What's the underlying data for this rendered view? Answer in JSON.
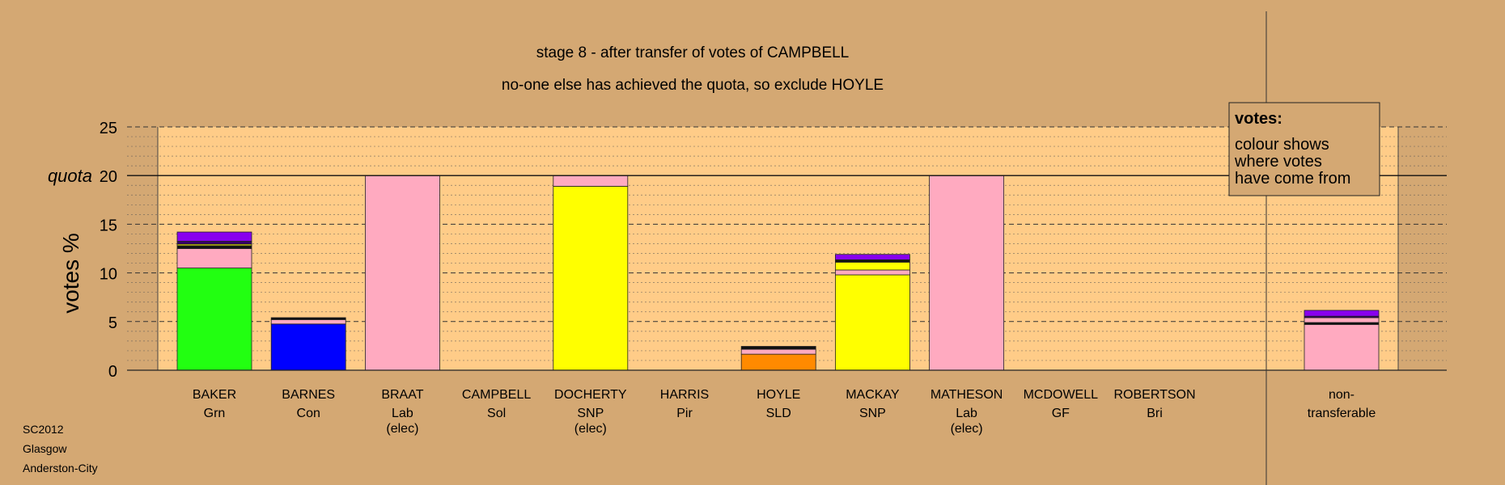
{
  "title": "stage 8 - after transfer of votes of CAMPBELL",
  "subtitle": "no-one else has achieved the quota, so exclude HOYLE",
  "ylabel": "votes %",
  "quota_label": "quota",
  "legend": {
    "heading": "votes:",
    "lines": [
      "colour shows",
      "where votes",
      "have come from"
    ]
  },
  "footer": [
    "SC2012",
    "Glasgow",
    "Anderston-City"
  ],
  "colors": {
    "background": "#d4a873",
    "plot_area": "#ffcc88",
    "Grn": "#22ff11",
    "Con": "#0000ff",
    "Lab": "#ffaac0",
    "SNP": "#ffff00",
    "SLD": "#ff8a00",
    "purple": "#8800ee",
    "dark_purple": "#330066",
    "black": "#111111"
  },
  "chart_data": {
    "type": "bar",
    "stacked": true,
    "ylim": [
      0,
      25
    ],
    "yticks": [
      0,
      5,
      10,
      15,
      20,
      25
    ],
    "ytick_labels": [
      "0",
      "5",
      "10",
      "15",
      "20",
      "25"
    ],
    "quota": 20,
    "grid": true,
    "legend_position": "top-right",
    "bars": [
      {
        "name": "BAKER",
        "party": "Grn",
        "note": "",
        "segments": [
          {
            "source": "Grn",
            "color": "#22ff11",
            "value": 10.5
          },
          {
            "source": "Lab",
            "color": "#ffaac0",
            "value": 2.0
          },
          {
            "source": "black",
            "color": "#111111",
            "value": 0.3
          },
          {
            "source": "SNP",
            "color": "#ffff00",
            "value": 0.15
          },
          {
            "source": "dark_purple",
            "color": "#330066",
            "value": 0.3
          },
          {
            "source": "purple",
            "color": "#8800ee",
            "value": 0.95
          }
        ]
      },
      {
        "name": "BARNES",
        "party": "Con",
        "note": "",
        "segments": [
          {
            "source": "Con",
            "color": "#0000ff",
            "value": 4.75
          },
          {
            "source": "Lab",
            "color": "#ffaac0",
            "value": 0.45
          },
          {
            "source": "black",
            "color": "#111111",
            "value": 0.2
          }
        ]
      },
      {
        "name": "BRAAT",
        "party": "Lab",
        "note": "(elec)",
        "segments": [
          {
            "source": "Lab",
            "color": "#ffaac0",
            "value": 20.0
          }
        ]
      },
      {
        "name": "CAMPBELL",
        "party": "Sol",
        "note": "",
        "segments": []
      },
      {
        "name": "DOCHERTY",
        "party": "SNP",
        "note": "(elec)",
        "segments": [
          {
            "source": "SNP",
            "color": "#ffff00",
            "value": 18.9
          },
          {
            "source": "Lab",
            "color": "#ffaac0",
            "value": 1.1
          }
        ]
      },
      {
        "name": "HARRIS",
        "party": "Pir",
        "note": "",
        "segments": []
      },
      {
        "name": "HOYLE",
        "party": "SLD",
        "note": "",
        "segments": [
          {
            "source": "SLD",
            "color": "#ff8a00",
            "value": 1.65
          },
          {
            "source": "Lab",
            "color": "#ffaac0",
            "value": 0.5
          },
          {
            "source": "black",
            "color": "#111111",
            "value": 0.3
          }
        ]
      },
      {
        "name": "MACKAY",
        "party": "SNP",
        "note": "",
        "segments": [
          {
            "source": "SNP",
            "color": "#ffff00",
            "value": 9.8
          },
          {
            "source": "Lab",
            "color": "#ffaac0",
            "value": 0.5
          },
          {
            "source": "SNP",
            "color": "#ffff00",
            "value": 0.8
          },
          {
            "source": "black",
            "color": "#111111",
            "value": 0.25
          },
          {
            "source": "purple",
            "color": "#8800ee",
            "value": 0.55
          }
        ]
      },
      {
        "name": "MATHESON",
        "party": "Lab",
        "note": "(elec)",
        "segments": [
          {
            "source": "Lab",
            "color": "#ffaac0",
            "value": 20.0
          }
        ]
      },
      {
        "name": "MCDOWELL",
        "party": "GF",
        "note": "",
        "segments": []
      },
      {
        "name": "ROBERTSON",
        "party": "Bri",
        "note": "",
        "segments": []
      }
    ],
    "non_transferable": {
      "label_line1": "non-",
      "label_line2": "transferable",
      "segments": [
        {
          "source": "Lab",
          "color": "#ffaac0",
          "value": 4.7
        },
        {
          "source": "black",
          "color": "#111111",
          "value": 0.2
        },
        {
          "source": "Lab",
          "color": "#ffaac0",
          "value": 0.5
        },
        {
          "source": "dark_purple",
          "color": "#330066",
          "value": 0.15
        },
        {
          "source": "purple",
          "color": "#8800ee",
          "value": 0.6
        }
      ]
    }
  }
}
